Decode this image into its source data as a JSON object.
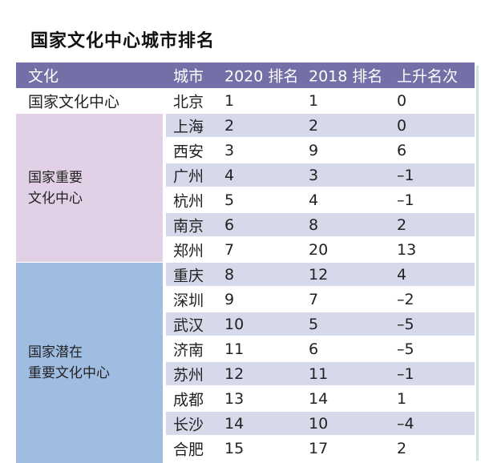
{
  "title": "国家文化中心城市排名",
  "colors": {
    "header": "#746fa6",
    "stripe": "#d6d9ea",
    "group_important": "#e2d1e6",
    "group_potential": "#9ebde1"
  },
  "headers": [
    "文化",
    "城市",
    "2020 排名",
    "2018 排名",
    "上升名次"
  ],
  "groups": [
    {
      "label": "国家文化中心"
    },
    {
      "label_line1": "国家重要",
      "label_line2": "文化中心"
    },
    {
      "label_line1": "国家潜在",
      "label_line2": "重要文化中心"
    }
  ],
  "rows": [
    {
      "city": "北京",
      "rank2020": "1",
      "rank2018": "1",
      "change": "0"
    },
    {
      "city": "上海",
      "rank2020": "2",
      "rank2018": "2",
      "change": "0"
    },
    {
      "city": "西安",
      "rank2020": "3",
      "rank2018": "9",
      "change": "6"
    },
    {
      "city": "广州",
      "rank2020": "4",
      "rank2018": "3",
      "change": "–1"
    },
    {
      "city": "杭州",
      "rank2020": "5",
      "rank2018": "4",
      "change": "–1"
    },
    {
      "city": "南京",
      "rank2020": "6",
      "rank2018": "8",
      "change": "2"
    },
    {
      "city": "郑州",
      "rank2020": "7",
      "rank2018": "20",
      "change": "13"
    },
    {
      "city": "重庆",
      "rank2020": "8",
      "rank2018": "12",
      "change": "4"
    },
    {
      "city": "深圳",
      "rank2020": "9",
      "rank2018": "7",
      "change": "–2"
    },
    {
      "city": "武汉",
      "rank2020": "10",
      "rank2018": "5",
      "change": "–5"
    },
    {
      "city": "济南",
      "rank2020": "11",
      "rank2018": "6",
      "change": "–5"
    },
    {
      "city": "苏州",
      "rank2020": "12",
      "rank2018": "11",
      "change": "–1"
    },
    {
      "city": "成都",
      "rank2020": "13",
      "rank2018": "14",
      "change": "1"
    },
    {
      "city": "长沙",
      "rank2020": "14",
      "rank2018": "10",
      "change": "–4"
    },
    {
      "city": "合肥",
      "rank2020": "15",
      "rank2018": "17",
      "change": "2"
    }
  ]
}
